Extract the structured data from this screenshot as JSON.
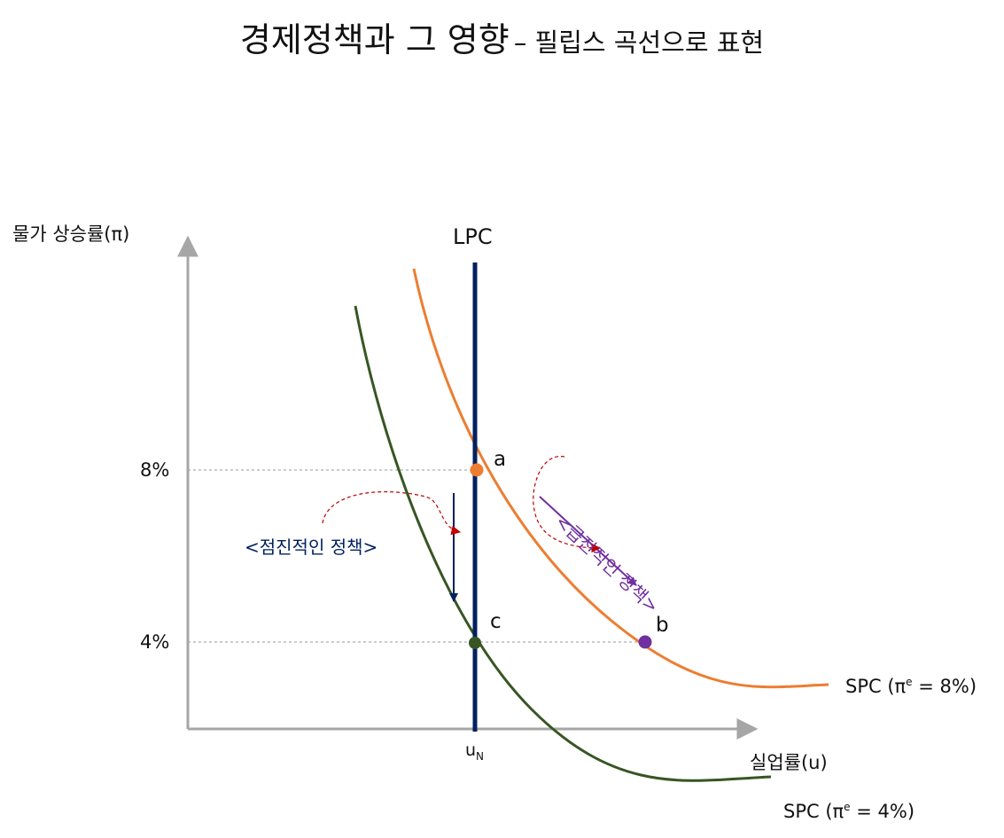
{
  "title": {
    "main": "경제정책과 그 영향",
    "sub": "– 필립스 곡선으로 표현"
  },
  "axes": {
    "y_label": "물가 상승률(π)",
    "x_label": "실업률(u)",
    "y_ticks": [
      "8%",
      "4%"
    ],
    "x_tick_base": "u",
    "x_tick_sub": "N"
  },
  "curves": {
    "lpc": "LPC",
    "spc_high": {
      "prefix": "SPC (π",
      "sup": "e",
      "suffix": " = 8%)"
    },
    "spc_low": {
      "prefix": "SPC (π",
      "sup": "e",
      "suffix": " = 4%)"
    }
  },
  "points": {
    "a": "a",
    "b": "b",
    "c": "c"
  },
  "annotations": {
    "gradual": "<점진적인 정책>",
    "rapid": "<급진적인 정책>"
  },
  "colors": {
    "lpc": "#002060",
    "spc_high": "#ED7D31",
    "spc_low": "#375623",
    "point_a": "#ED7D31",
    "point_b": "#7030A0",
    "point_c": "#375623",
    "gradual_arrow": "#002060",
    "rapid_arrow": "#7030A0",
    "hint_arrow": "#C00000",
    "axis": "#A6A6A6"
  }
}
